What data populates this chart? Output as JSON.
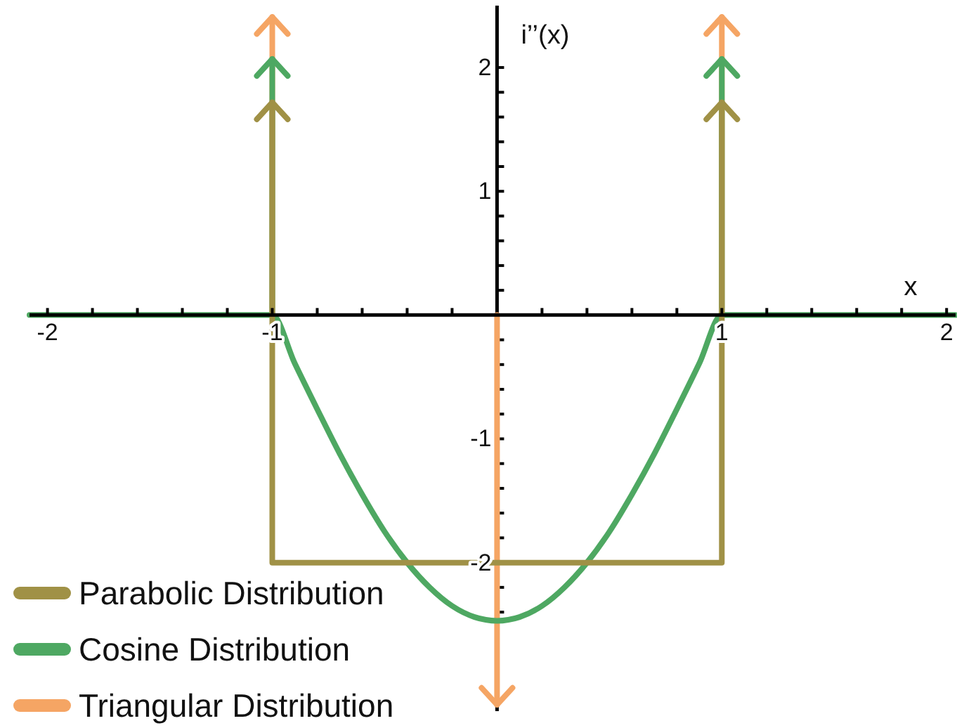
{
  "chart_data": {
    "type": "line",
    "xlabel": "x",
    "ylabel": "i’’(x)",
    "xlim": [
      -2.08,
      2.04
    ],
    "ylim": [
      -3.2,
      2.5
    ],
    "xticks": [
      -2,
      {
        "value": -1.8,
        "label": null
      },
      {
        "value": -1.6,
        "label": null
      },
      {
        "value": -1.4,
        "label": null
      },
      {
        "value": -1.2,
        "label": null
      },
      -1,
      {
        "value": -0.8,
        "label": null
      },
      {
        "value": -0.6,
        "label": null
      },
      {
        "value": -0.4,
        "label": null
      },
      {
        "value": -0.2,
        "label": null
      },
      {
        "value": 0.2,
        "label": null
      },
      {
        "value": 0.4,
        "label": null
      },
      {
        "value": 0.6,
        "label": null
      },
      {
        "value": 0.8,
        "label": null
      },
      1,
      {
        "value": 1.2,
        "label": null
      },
      {
        "value": 1.4,
        "label": null
      },
      {
        "value": 1.6,
        "label": null
      },
      {
        "value": 1.8,
        "label": null
      },
      2
    ],
    "yticks": [
      {
        "value": -2.4,
        "label": null
      },
      {
        "value": -2.2,
        "label": null
      },
      -2,
      {
        "value": -1.8,
        "label": null
      },
      {
        "value": -1.6,
        "label": null
      },
      {
        "value": -1.4,
        "label": null
      },
      {
        "value": -1.2,
        "label": null
      },
      -1,
      {
        "value": -0.8,
        "label": null
      },
      {
        "value": -0.6,
        "label": null
      },
      {
        "value": -0.4,
        "label": null
      },
      {
        "value": -0.2,
        "label": null
      },
      {
        "value": 0.2,
        "label": null
      },
      {
        "value": 0.4,
        "label": null
      },
      {
        "value": 0.6,
        "label": null
      },
      {
        "value": 0.8,
        "label": null
      },
      1,
      {
        "value": 1.2,
        "label": null
      },
      {
        "value": 1.4,
        "label": null
      },
      {
        "value": 1.6,
        "label": null
      },
      {
        "value": 1.8,
        "label": null
      },
      2
    ],
    "legend": "bottom left",
    "series": [
      {
        "name": "Parabolic Distribution",
        "color": "#a09146",
        "x": [
          -1,
          -1,
          1,
          1
        ],
        "values": [
          0,
          -2,
          -2,
          0
        ]
      },
      {
        "type": "lollipop",
        "color": "#a09146",
        "x": [
          -1,
          1
        ],
        "values": [
          1.65,
          1.65
        ]
      },
      {
        "name": "Cosine Distribution",
        "color": "#4ea862",
        "x": [
          -2.08,
          -1,
          -0.9,
          -0.8,
          -0.7,
          -0.6,
          -0.5,
          -0.4,
          -0.3,
          -0.2,
          -0.1,
          0,
          0.1,
          0.2,
          0.3,
          0.4,
          0.5,
          0.6,
          0.7,
          0.8,
          0.9,
          1,
          2.04
        ],
        "values": [
          0,
          0,
          -0.39,
          -0.76,
          -1.12,
          -1.45,
          -1.75,
          -2.0,
          -2.2,
          -2.35,
          -2.44,
          -2.47,
          -2.44,
          -2.35,
          -2.2,
          -2.0,
          -1.75,
          -1.45,
          -1.12,
          -0.76,
          -0.39,
          0,
          0
        ]
      },
      {
        "type": "lollipop",
        "color": "#4ea862",
        "x": [
          -1,
          1
        ],
        "values": [
          2.0,
          2.0
        ]
      },
      {
        "name": "Triangular Distribution",
        "type": "lollipop",
        "color": "#f5a564",
        "x": [
          -1,
          0,
          1
        ],
        "values": [
          2.34,
          -3.08,
          2.34
        ]
      }
    ]
  }
}
